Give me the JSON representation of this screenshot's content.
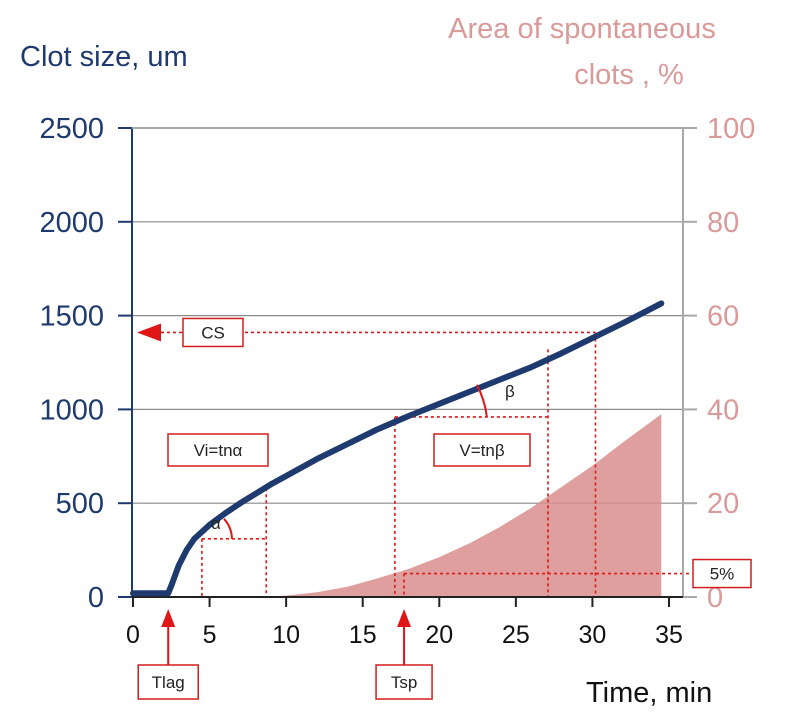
{
  "chart_data": {
    "type": "line",
    "xlabel": "Time, min",
    "ylabel": "Clot size, um",
    "y2label_line1": "Area of spontaneous",
    "y2label_line2": "clots , %",
    "xlim": [
      0,
      35
    ],
    "ylim": [
      0,
      2500
    ],
    "y2lim": [
      0,
      100
    ],
    "x_ticks": [
      "0",
      "5",
      "10",
      "15",
      "20",
      "25",
      "30",
      "35"
    ],
    "y_ticks": [
      "0",
      "500",
      "1000",
      "1500",
      "2000",
      "2500"
    ],
    "y2_ticks": [
      "0",
      "20",
      "40",
      "60",
      "80",
      "100"
    ],
    "grid": true,
    "colors": {
      "clot_line": "#1f3a6e",
      "area": "#d98e8e",
      "y2_text": "#d99a9a",
      "annotation": "#e01515"
    },
    "series": [
      {
        "type": "line",
        "axis": "left",
        "x": [
          0,
          2.3,
          2.5,
          3,
          3.5,
          4,
          5,
          6,
          7,
          8,
          9,
          10,
          12,
          14,
          16,
          18,
          20,
          22,
          24,
          26,
          28,
          30,
          32,
          34.5
        ],
        "y": [
          20,
          20,
          60,
          170,
          250,
          310,
          385,
          445,
          500,
          550,
          600,
          645,
          735,
          815,
          895,
          965,
          1030,
          1095,
          1160,
          1225,
          1300,
          1380,
          1460,
          1565
        ]
      },
      {
        "type": "area",
        "axis": "right",
        "x": [
          0,
          8,
          10,
          12,
          14,
          16,
          18,
          20,
          22,
          24,
          26,
          28,
          30,
          32,
          34.5,
          34.5
        ],
        "y": [
          0,
          0,
          0.3,
          1,
          2.2,
          4,
          6,
          8.5,
          11.5,
          15,
          19,
          23.5,
          28,
          33,
          39,
          0
        ]
      }
    ],
    "annotations": {
      "cs": "CS",
      "vi": "Vi=tnα",
      "v": "V=tnβ",
      "alpha": "α",
      "beta": "β",
      "pct": "5%",
      "tlag": "Tlag",
      "tsp": "Tsp"
    },
    "markers": {
      "tlag_x": 2.3,
      "tsp_x": 17.7,
      "cs_y": 1410,
      "cs_x_end": 30.2,
      "pct_y2": 5,
      "alpha_x0": 4.5,
      "alpha_x1": 8.7,
      "alpha_y": 310,
      "alpha_y_top": 580,
      "beta_x0": 17.1,
      "beta_x1": 27.1,
      "beta_y": 960,
      "beta_y_top": 1320
    }
  }
}
